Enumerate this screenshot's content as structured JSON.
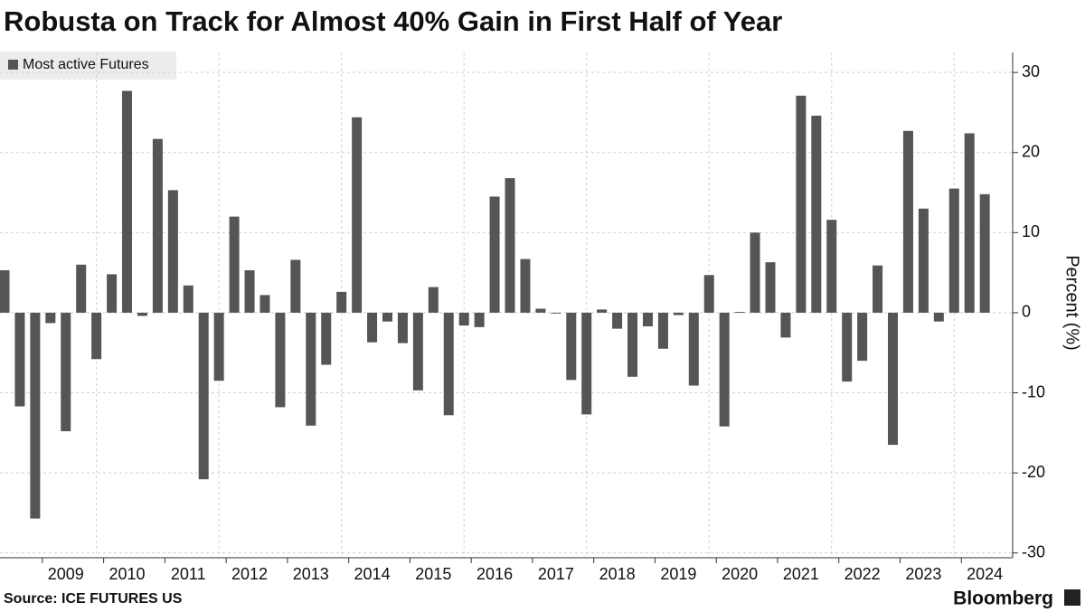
{
  "chart_data": {
    "type": "bar",
    "title": "Robusta on Track for Almost 40% Gain in First Half of Year",
    "legend": "Most active Futures",
    "y_label": "Percent (%)",
    "source": "Source: ICE FUTURES US",
    "brand": "Bloomberg",
    "color": "#555555",
    "categories": [
      null,
      null,
      null,
      null,
      "2009",
      null,
      null,
      null,
      "2010",
      null,
      null,
      null,
      "2011",
      null,
      null,
      null,
      "2012",
      null,
      null,
      null,
      "2013",
      null,
      null,
      null,
      "2014",
      null,
      null,
      null,
      "2015",
      null,
      null,
      null,
      "2016",
      null,
      null,
      null,
      "2017",
      null,
      null,
      null,
      "2018",
      null,
      null,
      null,
      "2019",
      null,
      null,
      null,
      "2020",
      null,
      null,
      null,
      "2021",
      null,
      null,
      null,
      "2022",
      null,
      null,
      null,
      "2023",
      null,
      null,
      null,
      "2024"
    ],
    "values": [
      5.3,
      -11.7,
      -25.7,
      -1.3,
      -14.8,
      6,
      -5.8,
      4.8,
      27.7,
      -0.4,
      21.7,
      15.3,
      3.4,
      -20.8,
      -8.5,
      12,
      5.3,
      2.2,
      -11.8,
      6.6,
      -14.1,
      -6.5,
      2.6,
      24.4,
      -3.7,
      -1.1,
      -3.8,
      -9.7,
      3.2,
      -12.8,
      -1.6,
      -1.8,
      14.5,
      16.8,
      6.7,
      0.5,
      -0.1,
      -8.4,
      -12.7,
      0.4,
      -2,
      -8,
      -1.7,
      -4.5,
      -0.3,
      -9.1,
      4.7,
      -14.2,
      0.1,
      10,
      6.3,
      -3.1,
      27.1,
      24.6,
      11.6,
      -8.6,
      -6,
      5.9,
      -16.5,
      22.7,
      13,
      -1.1,
      15.5,
      22.4,
      14.8
    ],
    "ylim": [
      -30.6,
      32.5
    ],
    "yticks": [
      -30,
      -20,
      -10,
      0,
      10,
      20,
      30
    ],
    "grid": true
  }
}
